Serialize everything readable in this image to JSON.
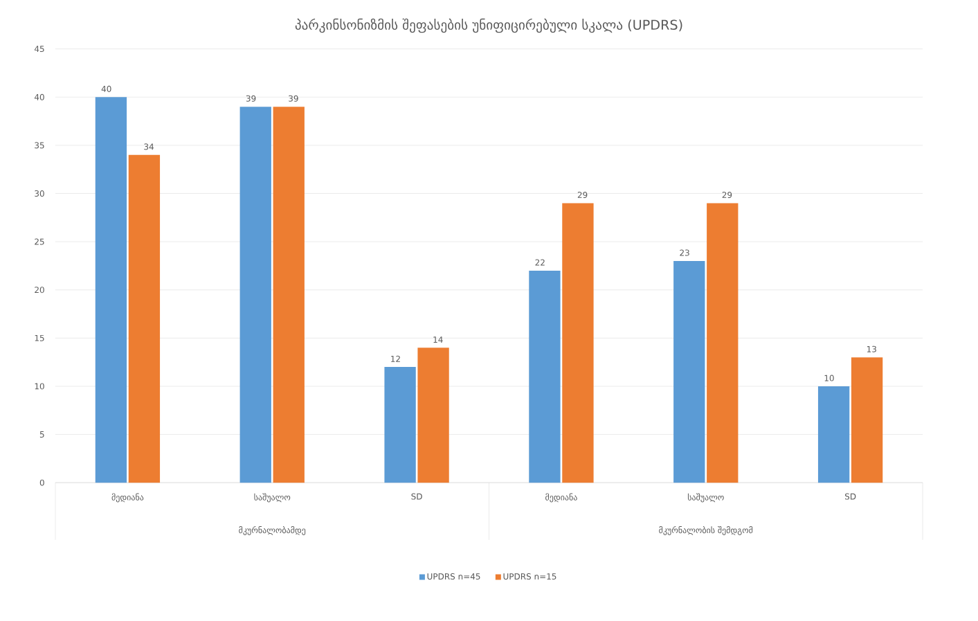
{
  "chart_data": {
    "type": "bar",
    "title": "პარკინსონიზმის შეფასების უნიფიცირებული სკალა (UPDRS)",
    "categories": [
      "მედიანა",
      "საშუალო",
      "SD",
      "მედიანა",
      "საშუალო",
      "SD"
    ],
    "annotations": [
      "მკურნალობამდე",
      "მკურნალობის შემდგომ"
    ],
    "series": [
      {
        "name": "UPDRS n=45",
        "color": "#5b9bd5",
        "values": [
          40,
          39,
          12,
          22,
          23,
          10
        ]
      },
      {
        "name": "UPDRS n=15",
        "color": "#ed7d31",
        "values": [
          34,
          39,
          14,
          29,
          29,
          13
        ]
      }
    ],
    "ylim": [
      0,
      45
    ],
    "yticks": [
      0,
      5,
      10,
      15,
      20,
      25,
      30,
      35,
      40,
      45
    ],
    "grid": "y",
    "legend": "bottom",
    "data_labels": true
  }
}
